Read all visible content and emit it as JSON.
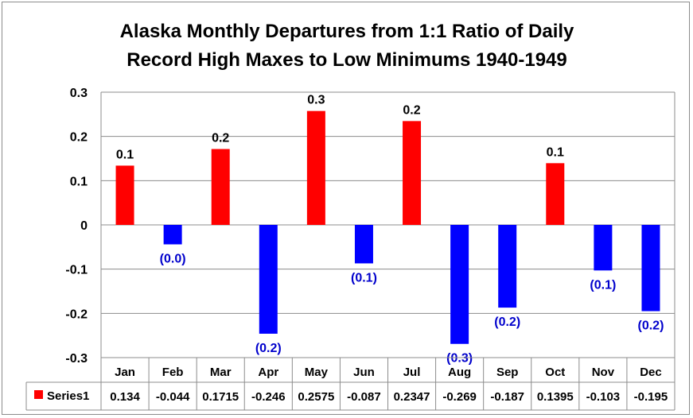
{
  "chart_data": {
    "type": "bar",
    "title_lines": [
      "Alaska Monthly Departures from 1:1 Ratio of Daily",
      "Record High Maxes to Low Minimums 1940-1949"
    ],
    "categories": [
      "Jan",
      "Feb",
      "Mar",
      "Apr",
      "May",
      "Jun",
      "Jul",
      "Aug",
      "Sep",
      "Oct",
      "Nov",
      "Dec"
    ],
    "series": [
      {
        "name": "Series1",
        "values": [
          0.134,
          -0.044,
          0.1715,
          -0.246,
          0.2575,
          -0.087,
          0.2347,
          -0.269,
          -0.187,
          0.1395,
          -0.103,
          -0.195
        ]
      }
    ],
    "table_values": [
      "0.134",
      "-0.044",
      "0.1715",
      "-0.246",
      "0.2575",
      "-0.087",
      "0.2347",
      "-0.269",
      "-0.187",
      "0.1395",
      "-0.103",
      "-0.195"
    ],
    "data_labels": [
      "0.1",
      "(0.0)",
      "0.2",
      "(0.2)",
      "0.3",
      "(0.1)",
      "0.2",
      "(0.3)",
      "(0.2)",
      "0.1",
      "(0.1)",
      "(0.2)"
    ],
    "y_ticks": [
      0.3,
      0.2,
      0.1,
      0,
      -0.1,
      -0.2,
      -0.3
    ],
    "y_tick_labels": [
      "0.3",
      "0.2",
      "0.1",
      "0",
      "-0.1",
      "-0.2",
      "-0.3"
    ],
    "ylim": [
      -0.3,
      0.3
    ],
    "grid": true,
    "legend": "data-table",
    "colors": {
      "positive": "#ff0000",
      "negative": "#0000ff",
      "positive_label": "#000000",
      "negative_label": "#0000cc",
      "grid": "#8c8c8c"
    }
  }
}
